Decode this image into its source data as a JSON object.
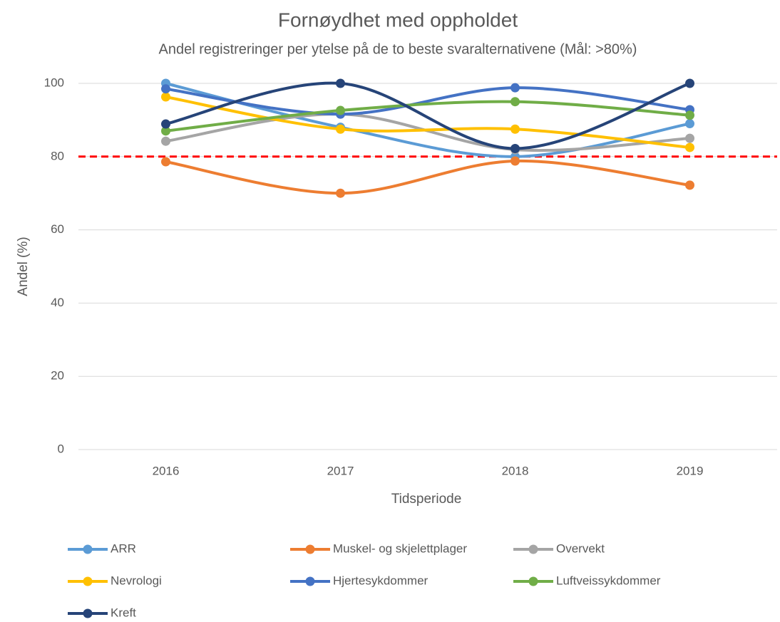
{
  "chart_data": {
    "type": "line",
    "title": "Fornøydhet med oppholdet",
    "subtitle": "Andel registreringer per ytelse på de to beste svaralternativene (Mål: >80%)",
    "x_label": "Tidsperiode",
    "y_label": "Andel (%)",
    "categories": [
      "2016",
      "2017",
      "2018",
      "2019"
    ],
    "series": [
      {
        "name": "ARR",
        "color": "#5b9bd5",
        "values": [
          100,
          88,
          80,
          89
        ]
      },
      {
        "name": "Muskel- og skjelettplager",
        "color": "#ed7d31",
        "values": [
          78.6,
          70,
          78.8,
          72.2
        ]
      },
      {
        "name": "Overvekt",
        "color": "#a5a5a5",
        "values": [
          84.2,
          91.6,
          81.9,
          85
        ]
      },
      {
        "name": "Nevrologi",
        "color": "#ffc000",
        "values": [
          96.3,
          87.5,
          87.5,
          82.5
        ]
      },
      {
        "name": "Hjertesykdommer",
        "color": "#4472c4",
        "values": [
          98.5,
          91.6,
          98.8,
          92.8
        ]
      },
      {
        "name": "Luftveissykdommer",
        "color": "#70ad47",
        "values": [
          87,
          92.6,
          95,
          91.3
        ]
      },
      {
        "name": "Kreft",
        "color": "#264478",
        "values": [
          88.9,
          100,
          82.2,
          100
        ]
      }
    ],
    "reference_line": {
      "value": 80,
      "color": "#ff0000"
    },
    "ylim": [
      0,
      100
    ],
    "yticks": [
      0,
      20,
      40,
      60,
      80,
      100
    ],
    "grid": true,
    "smooth": true,
    "legend": "bottom"
  }
}
